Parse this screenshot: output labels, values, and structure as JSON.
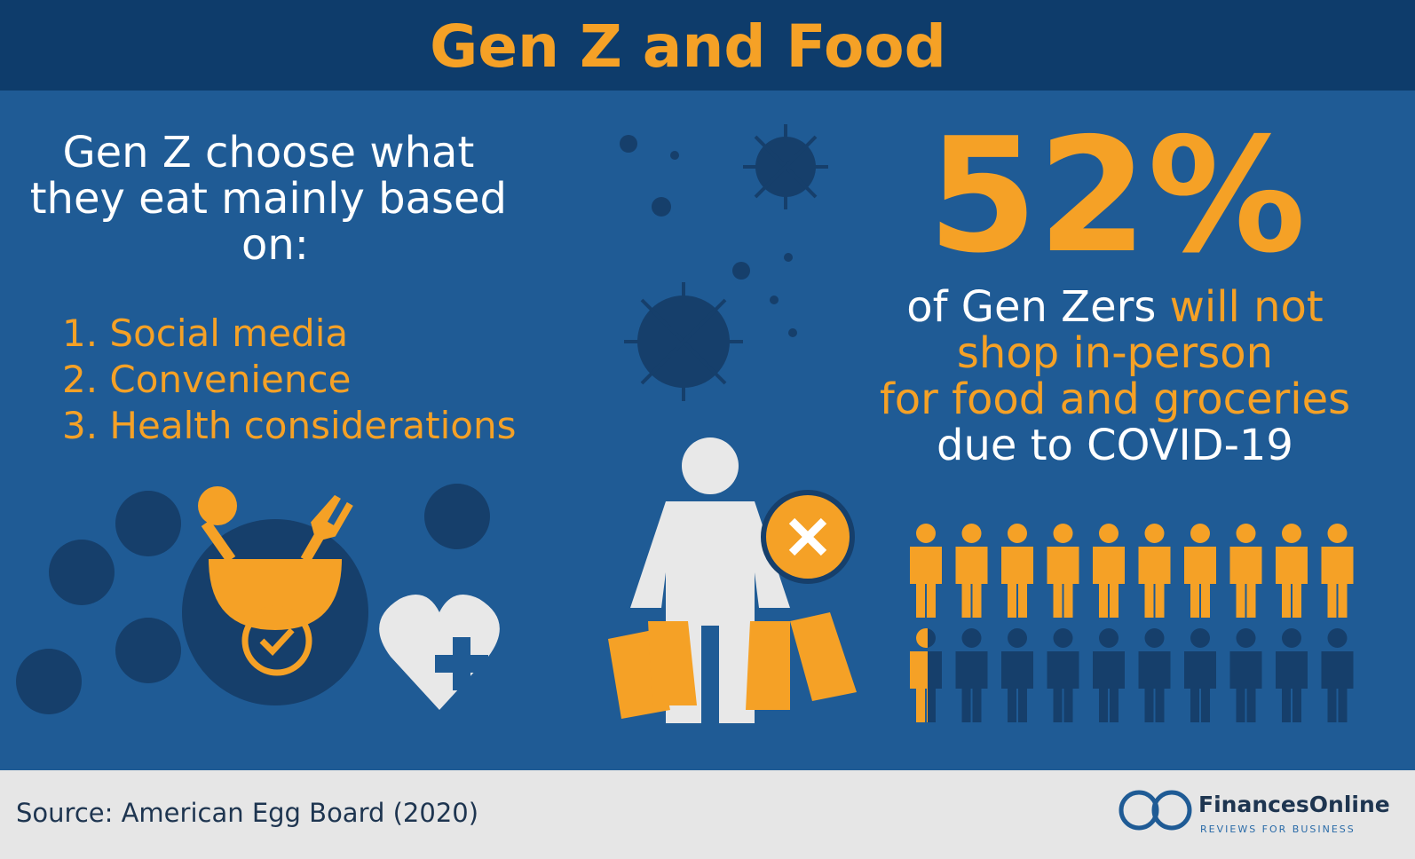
{
  "header": {
    "title": "Gen Z and Food"
  },
  "left": {
    "heading_lines": [
      "Gen Z choose what",
      "they eat mainly based",
      "on:"
    ],
    "items": [
      "1. Social media",
      "2. Convenience",
      "3. Health considerations"
    ]
  },
  "stat": {
    "value": "52%",
    "lines": [
      [
        {
          "text": "of Gen Zers",
          "accent": false
        },
        {
          "text": " will not",
          "accent": true
        }
      ],
      [
        {
          "text": "shop in-person",
          "accent": true
        }
      ],
      [
        {
          "text": "for food and groceries",
          "accent": true
        }
      ],
      [
        {
          "text": "due to COVID-19",
          "accent": false
        }
      ]
    ]
  },
  "footer": {
    "source": "Source: American Egg Board (2020)",
    "brand": "FinancesOnline",
    "tagline": "REVIEWS FOR BUSINESS"
  }
}
